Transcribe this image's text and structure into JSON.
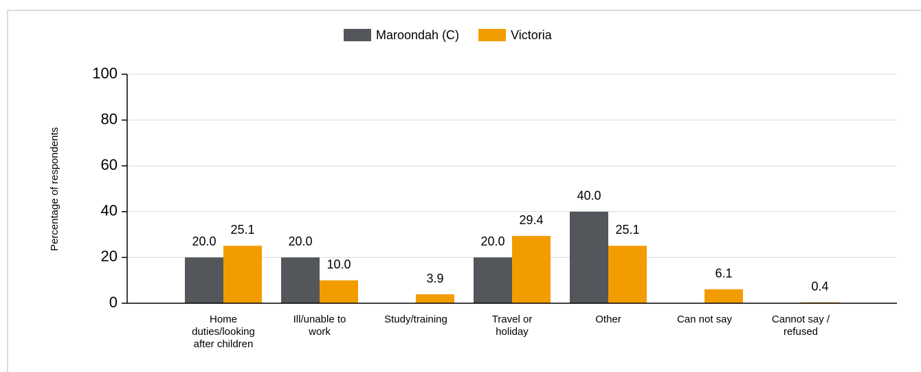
{
  "chart_data": {
    "type": "bar",
    "y_label": "Percentage of respondents",
    "categories": [
      "Home duties/looking after children",
      "Ill/unable to work",
      "Study/training",
      "Travel or holiday",
      "Other",
      "Can not say",
      "Cannot say / refused"
    ],
    "series": [
      {
        "name": "Maroondah (C)",
        "color": "#53565a",
        "values": [
          20,
          20,
          null,
          20,
          40,
          null,
          null
        ],
        "value_labels": [
          "20.0",
          "20.0",
          null,
          "20.0",
          "40.0",
          null,
          null
        ]
      },
      {
        "name": "Victoria",
        "color": "#f39c00",
        "values": [
          25.1,
          10,
          3.9,
          29.4,
          25.1,
          6.1,
          0.4
        ],
        "value_labels": [
          "25.1",
          "10.0",
          "3.9",
          "29.4",
          "25.1",
          "6.1",
          "0.4"
        ]
      }
    ],
    "ylim": [
      0,
      100
    ],
    "yticks": [
      0,
      20,
      40,
      60,
      80,
      100
    ],
    "grid": true,
    "legend": "top"
  }
}
